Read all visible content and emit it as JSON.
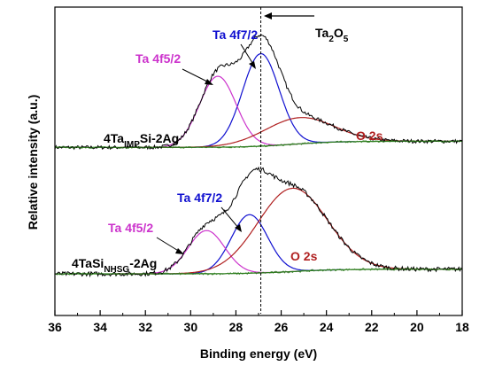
{
  "chart_data": {
    "type": "line",
    "xlabel": "Binding energy (eV)",
    "ylabel": "Relative intensity (a.u.)",
    "xlim": [
      36,
      18
    ],
    "x_reversed": true,
    "x_ticks": [
      "36",
      "34",
      "32",
      "30",
      "28",
      "26",
      "24",
      "22",
      "20",
      "18"
    ],
    "ylim": [
      0,
      1
    ],
    "y_ticks_shown": false,
    "grid": false,
    "reference_line": {
      "x": 26.9,
      "style": "dashed",
      "label_main": "Ta",
      "label_sub": "2",
      "label_after": "O",
      "label_sub2": "5"
    },
    "colors": {
      "experimental": "#000000",
      "ta4f72": "#1010d0",
      "ta4f52": "#cc33cc",
      "o2s": "#b02020",
      "background": "#2e7d1e"
    },
    "panels": [
      {
        "sample_label": {
          "main": "4Ta",
          "sub": "IMP",
          "after": "Si-2Ag"
        },
        "baseline": 0.565,
        "background_left": 0.545,
        "noise_amp": 0.006,
        "envelope_max": 0.935,
        "components": [
          {
            "name": "Ta 4f7/2",
            "color_key": "ta4f72",
            "center": 26.9,
            "height": 0.3,
            "fwhm": 1.9
          },
          {
            "name": "Ta 4f5/2",
            "color_key": "ta4f52",
            "center": 28.8,
            "height": 0.23,
            "fwhm": 1.9
          },
          {
            "name": "O 2s",
            "color_key": "o2s",
            "center": 25.2,
            "height": 0.085,
            "fwhm": 3.6
          }
        ],
        "annotations": [
          {
            "text": "Ta 4f7/2",
            "color_key": "ta4f72"
          },
          {
            "text": "Ta 4f5/2",
            "color_key": "ta4f52"
          },
          {
            "text": "O 2s",
            "color_key": "o2s"
          }
        ]
      },
      {
        "sample_label": {
          "main": "4TaSi",
          "sub": "NHSG",
          "after": "-2Ag"
        },
        "baseline": 0.15,
        "background_left": 0.135,
        "noise_amp": 0.007,
        "envelope_max": 0.48,
        "components": [
          {
            "name": "Ta 4f7/2",
            "color_key": "ta4f72",
            "center": 27.4,
            "height": 0.19,
            "fwhm": 1.9
          },
          {
            "name": "Ta 4f5/2",
            "color_key": "ta4f52",
            "center": 29.3,
            "height": 0.14,
            "fwhm": 1.9
          },
          {
            "name": "O 2s",
            "color_key": "o2s",
            "center": 25.5,
            "height": 0.27,
            "fwhm": 3.6
          }
        ],
        "annotations": [
          {
            "text": "Ta 4f7/2",
            "color_key": "ta4f72"
          },
          {
            "text": "Ta 4f5/2",
            "color_key": "ta4f52"
          },
          {
            "text": "O 2s",
            "color_key": "o2s"
          }
        ]
      }
    ]
  }
}
